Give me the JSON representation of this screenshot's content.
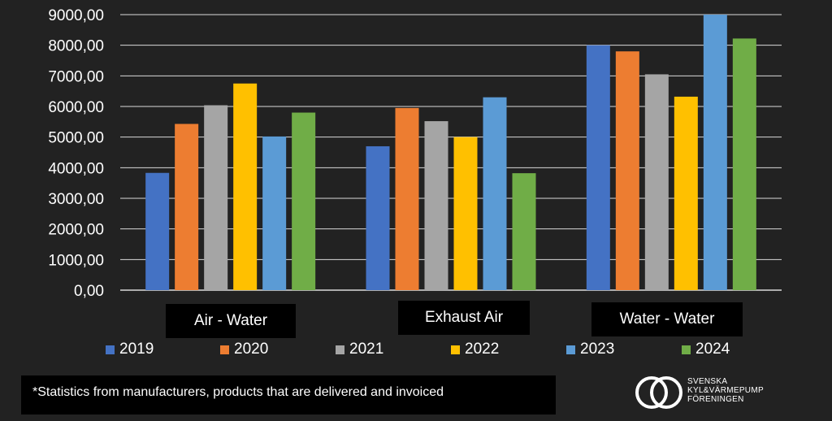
{
  "chart_data": {
    "type": "bar",
    "categories": [
      "Air - Water",
      "Exhaust Air",
      "Water - Water"
    ],
    "series": [
      {
        "name": "2019",
        "values": [
          3830,
          4700,
          8000
        ],
        "color": "#4472C4"
      },
      {
        "name": "2020",
        "values": [
          5430,
          5950,
          7800
        ],
        "color": "#ED7D31"
      },
      {
        "name": "2021",
        "values": [
          6040,
          5520,
          7050
        ],
        "color": "#A5A5A5"
      },
      {
        "name": "2022",
        "values": [
          6750,
          5000,
          6320
        ],
        "color": "#FFC000"
      },
      {
        "name": "2023",
        "values": [
          5020,
          6300,
          9000
        ],
        "color": "#5B9BD5"
      },
      {
        "name": "2024",
        "values": [
          5800,
          3820,
          8220
        ],
        "color": "#70AD47"
      }
    ],
    "yticks": [
      "0,00",
      "1000,00",
      "2000,00",
      "3000,00",
      "4000,00",
      "5000,00",
      "6000,00",
      "7000,00",
      "8000,00",
      "9000,00"
    ],
    "ylim": [
      0,
      9000
    ],
    "title": "",
    "xlabel": "",
    "ylabel": "",
    "grid": true,
    "legend_position": "bottom"
  },
  "footnote": "*Statistics from manufacturers, products that are delivered and invoiced",
  "logo": {
    "line1": "SVENSKA",
    "line2": "KYL&VÄRMEPUMP",
    "line3": "FÖRENINGEN"
  }
}
